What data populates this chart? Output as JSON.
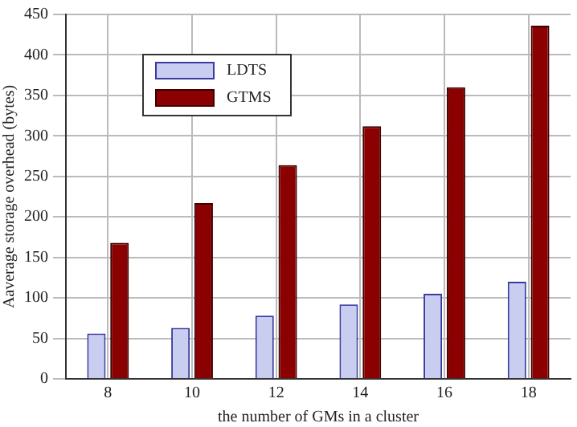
{
  "chart_data": {
    "type": "bar",
    "xlabel": "the number of GMs in a cluster",
    "ylabel": "Aaverage storage overhead (bytes)",
    "categories": [
      "8",
      "10",
      "12",
      "14",
      "16",
      "18"
    ],
    "series": [
      {
        "name": "LDTS",
        "color": "#c9cdf0",
        "values": [
          56,
          63,
          78,
          92,
          105,
          120
        ]
      },
      {
        "name": "GTMS",
        "color": "#8b0000",
        "values": [
          168,
          217,
          264,
          312,
          360,
          436
        ]
      }
    ],
    "ylim": [
      0,
      450
    ],
    "yticks": [
      0,
      50,
      100,
      150,
      200,
      250,
      300,
      350,
      400,
      450
    ],
    "grid": true,
    "legend": "top left"
  }
}
